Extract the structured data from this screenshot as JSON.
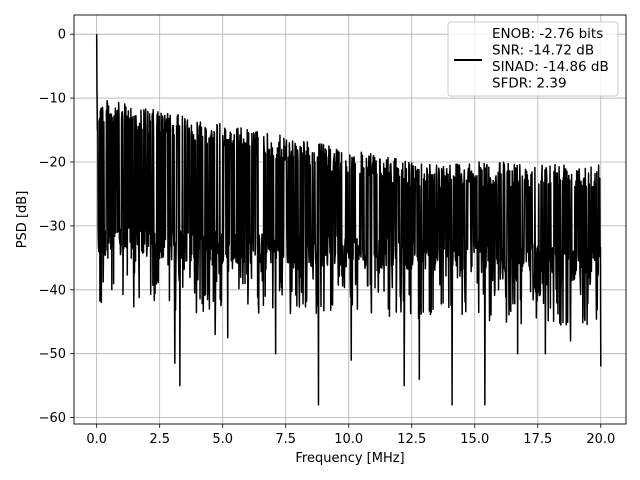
{
  "chart_data": {
    "type": "line",
    "title": "",
    "xlabel": "Frequency [MHz]",
    "ylabel": "PSD [dB]",
    "xlim": [
      -0.9,
      21.0
    ],
    "ylim": [
      -61,
      3
    ],
    "xticks": [
      0.0,
      2.5,
      5.0,
      7.5,
      10.0,
      12.5,
      15.0,
      17.5,
      20.0
    ],
    "xtick_labels": [
      "0.0",
      "2.5",
      "5.0",
      "7.5",
      "10.0",
      "12.5",
      "15.0",
      "17.5",
      "20.0"
    ],
    "yticks": [
      0,
      -10,
      -20,
      -30,
      -40,
      -50,
      -60
    ],
    "ytick_labels": [
      "0",
      "−10",
      "−20",
      "−30",
      "−40",
      "−50",
      "−60"
    ],
    "grid": true,
    "legend_position": "top-right",
    "series_color": "#000000",
    "legend_lines": [
      "ENOB: -2.76 bits",
      "SNR: -14.72 dB",
      "SINAD: -14.86 dB",
      "SFDR: 2.39"
    ],
    "series": [
      {
        "name": "ENOB: -2.76 bits\nSNR: -14.72 dB\nSINAD: -14.86 dB\nSFDR: 2.39",
        "f_min": 0.0,
        "f_max": 20.0,
        "dc_value": 0,
        "envelope_upper_start": -10,
        "envelope_upper_end": -20,
        "envelope_lower_start": -35,
        "envelope_lower_end": -38,
        "deep_nulls": [
          {
            "x": 3.1,
            "y": -51.5
          },
          {
            "x": 3.3,
            "y": -55.0
          },
          {
            "x": 4.7,
            "y": -47.0
          },
          {
            "x": 5.2,
            "y": -47.5
          },
          {
            "x": 7.1,
            "y": -50.0
          },
          {
            "x": 8.8,
            "y": -58.0
          },
          {
            "x": 10.1,
            "y": -51.0
          },
          {
            "x": 12.2,
            "y": -55.0
          },
          {
            "x": 12.8,
            "y": -54.0
          },
          {
            "x": 14.1,
            "y": -58.0
          },
          {
            "x": 15.4,
            "y": -58.0
          },
          {
            "x": 16.7,
            "y": -50.0
          },
          {
            "x": 17.8,
            "y": -50.0
          },
          {
            "x": 18.8,
            "y": -48.0
          },
          {
            "x": 20.0,
            "y": -52.0
          }
        ]
      }
    ]
  }
}
